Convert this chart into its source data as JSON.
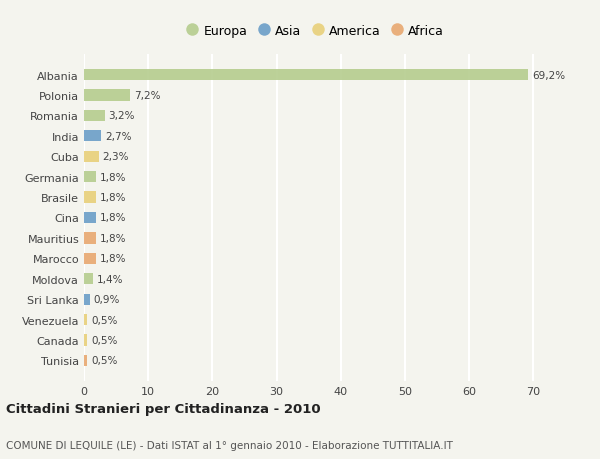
{
  "countries": [
    "Albania",
    "Polonia",
    "Romania",
    "India",
    "Cuba",
    "Germania",
    "Brasile",
    "Cina",
    "Mauritius",
    "Marocco",
    "Moldova",
    "Sri Lanka",
    "Venezuela",
    "Canada",
    "Tunisia"
  ],
  "values": [
    69.2,
    7.2,
    3.2,
    2.7,
    2.3,
    1.8,
    1.8,
    1.8,
    1.8,
    1.8,
    1.4,
    0.9,
    0.5,
    0.5,
    0.5
  ],
  "labels": [
    "69,2%",
    "7,2%",
    "3,2%",
    "2,7%",
    "2,3%",
    "1,8%",
    "1,8%",
    "1,8%",
    "1,8%",
    "1,8%",
    "1,4%",
    "0,9%",
    "0,5%",
    "0,5%",
    "0,5%"
  ],
  "continents": [
    "Europa",
    "Europa",
    "Europa",
    "Asia",
    "America",
    "Europa",
    "America",
    "Asia",
    "Africa",
    "Africa",
    "Europa",
    "Asia",
    "America",
    "America",
    "Africa"
  ],
  "continent_colors": {
    "Europa": "#b5cc8e",
    "Asia": "#6b9ec8",
    "America": "#e8d07a",
    "Africa": "#e8a870"
  },
  "background_color": "#f4f4ee",
  "title": "Cittadini Stranieri per Cittadinanza - 2010",
  "subtitle": "COMUNE DI LEQUILE (LE) - Dati ISTAT al 1° gennaio 2010 - Elaborazione TUTTITALIA.IT",
  "xlim": [
    0,
    72
  ],
  "xticks": [
    0,
    10,
    20,
    30,
    40,
    50,
    60,
    70
  ],
  "grid_color": "#ffffff",
  "bar_height": 0.55,
  "legend_order": [
    "Europa",
    "Asia",
    "America",
    "Africa"
  ]
}
